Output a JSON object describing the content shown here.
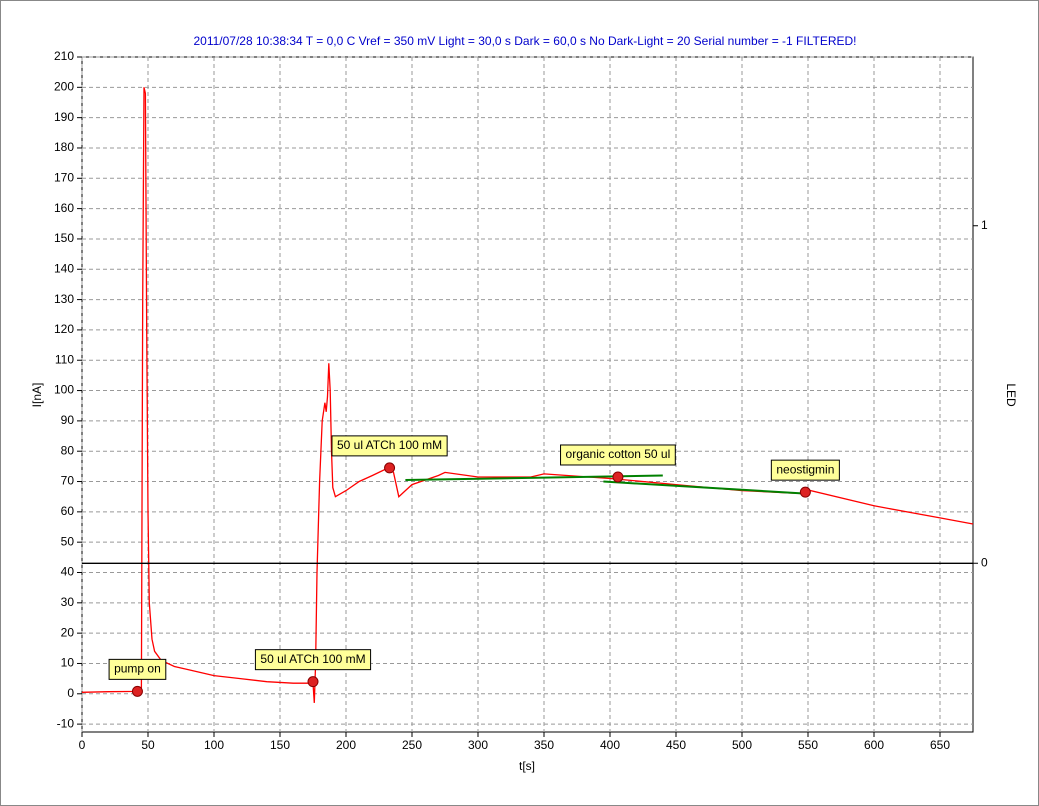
{
  "chart_data": {
    "type": "line",
    "title": "2011/07/28 10:38:34   T = 0,0 C   Vref = 350 mV   Light = 30,0 s   Dark = 60,0 s   No Dark-Light = 20   Serial number = -1 FILTERED!",
    "x_label": "t[s]",
    "y_label": "I[nA]",
    "y2_label": "LED",
    "xlim": [
      0,
      675
    ],
    "ylim": [
      -12.6,
      210
    ],
    "y2lim": [
      -0.5,
      1.5
    ],
    "xticks": [
      0,
      50,
      100,
      150,
      200,
      250,
      300,
      350,
      400,
      450,
      500,
      550,
      600,
      650
    ],
    "yticks": [
      -10,
      0,
      10,
      20,
      30,
      40,
      50,
      60,
      70,
      80,
      90,
      100,
      110,
      120,
      130,
      140,
      150,
      160,
      170,
      180,
      190,
      200,
      210
    ],
    "y2ticks": [
      0,
      1
    ],
    "grid": true,
    "series": [
      {
        "color": "#ff0000",
        "x": [
          0,
          20,
          42,
          45,
          46,
          47,
          48,
          49,
          50,
          51,
          53,
          55,
          60,
          70,
          80,
          100,
          120,
          140,
          160,
          175,
          176,
          177,
          178,
          180,
          182,
          184,
          185,
          186,
          187,
          188,
          189,
          190,
          192,
          200,
          210,
          220,
          232,
          236,
          240,
          245,
          250,
          270,
          275,
          300,
          340,
          350,
          400,
          450,
          500,
          548,
          552,
          600,
          650,
          675
        ],
        "values": [
          0.5,
          0.7,
          0.8,
          2,
          130,
          200,
          198,
          120,
          60,
          30,
          18,
          14,
          11,
          9,
          8,
          6,
          5,
          4,
          3.5,
          3.5,
          -3,
          10,
          40,
          70,
          90,
          96,
          93,
          98,
          109,
          100,
          80,
          68,
          65,
          67,
          70,
          72,
          74.5,
          73,
          65,
          67,
          69,
          72,
          73,
          71.5,
          71.5,
          72.5,
          71,
          69,
          67,
          66,
          67,
          62,
          58,
          56
        ]
      },
      {
        "color": "#008000",
        "x": [
          245,
          440
        ],
        "values": [
          70.5,
          72
        ]
      },
      {
        "color": "#008000",
        "x": [
          395,
          550
        ],
        "values": [
          70,
          66
        ]
      },
      {
        "color": "#000000",
        "axis": "y2",
        "x": [
          0,
          675
        ],
        "values": [
          0,
          0
        ]
      }
    ],
    "annotations": [
      {
        "text": "pump on",
        "x": 42,
        "y": 0.8
      },
      {
        "text": "50 ul ATCh 100 mM",
        "x": 175,
        "y": 4
      },
      {
        "text": "50 ul ATCh 100 mM",
        "x": 233,
        "y": 74.5
      },
      {
        "text": "organic cotton 50 ul",
        "x": 406,
        "y": 71.5
      },
      {
        "text": "neostigmin",
        "x": 548,
        "y": 66.5
      }
    ]
  }
}
